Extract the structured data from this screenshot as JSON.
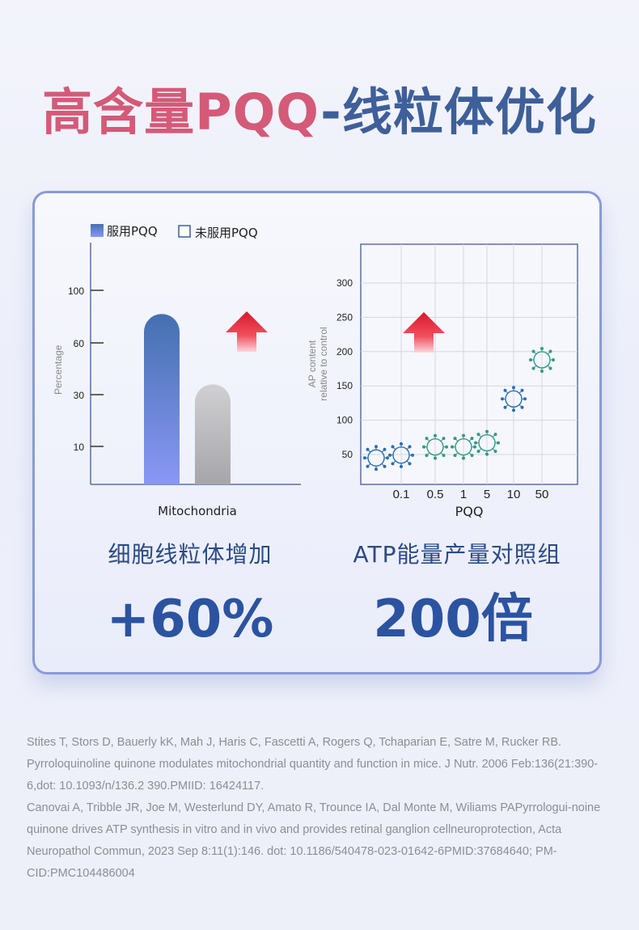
{
  "title": {
    "left": "高含量PQQ",
    "right": "-线粒体优化"
  },
  "colors": {
    "title_pink": "#d45a78",
    "title_blue": "#3e5f99",
    "bar_taking": "#4a72b4",
    "bar_not_taking": "#b0b0b4",
    "virus_blue": "#2a6fae",
    "virus_green": "#2f9a8a",
    "arrow_red": "#e02a3a",
    "metric_blue": "#2b53a0"
  },
  "chart_data": [
    {
      "type": "bar",
      "legend": [
        "服用PQQ",
        "未服用PQQ"
      ],
      "legend_placement": "top-left",
      "categories": [
        "Mitochondria"
      ],
      "series": [
        {
          "name": "服用PQQ",
          "values": [
            82
          ]
        },
        {
          "name": "未服用PQQ",
          "values": [
            36
          ]
        }
      ],
      "ylabel": "Percentage",
      "xlabel": "Mitochondria",
      "yticks": [
        "10",
        "30",
        "60",
        "100"
      ],
      "annotation_icon": "up-arrow-icon"
    },
    {
      "type": "scatter",
      "x": [
        "0.1",
        "0.5",
        "1",
        "5",
        "10",
        "50"
      ],
      "points": [
        {
          "x": "",
          "y": 45
        },
        {
          "x": "0.1",
          "y": 49
        },
        {
          "x": "0.5",
          "y": 61
        },
        {
          "x": "1",
          "y": 61
        },
        {
          "x": "5",
          "y": 67
        },
        {
          "x": "10",
          "y": 131
        },
        {
          "x": "50",
          "y": 188
        }
      ],
      "marker_icon": "virus-icon",
      "xlabel": "PQQ",
      "ylabel": "AP content\nrelative to control",
      "yticks": [
        50,
        100,
        150,
        200,
        250,
        300
      ],
      "grid": true,
      "annotation_icon": "up-arrow-icon"
    }
  ],
  "metrics": [
    {
      "label": "细胞线粒体增加",
      "value": "+60%"
    },
    {
      "label": "ATP能量产量对照组",
      "value": "200倍"
    }
  ],
  "references": [
    "Stites T, Stors D, Bauerly kK, Mah J, Haris C, Fascetti A, Rogers Q, Tchaparian E, Satre M, Rucker   RB. Pyrroloquinoline quinone modulates mitochondrial quantity and function in mice. J Nutr. 2006 Feb:136(21:390-6,dot: 10.1093/n/136.2 390.PMIID: 16424117.",
    "Canovai A, Tribble JR, Joe M, Westerlund DY, Amato R, Trounce IA, Dal Monte M, Wiliams PAPyrrologui-noine quinone drives ATP synthesis in vitro and in vivo and provides retinal ganglion cellneuroprotection, Acta Neuropathol Commun, 2023 Sep 8:11(1):146. dot: 10.1186/540478-023-01642-6PMID:37684640; PM-CID:PMC104486004"
  ]
}
